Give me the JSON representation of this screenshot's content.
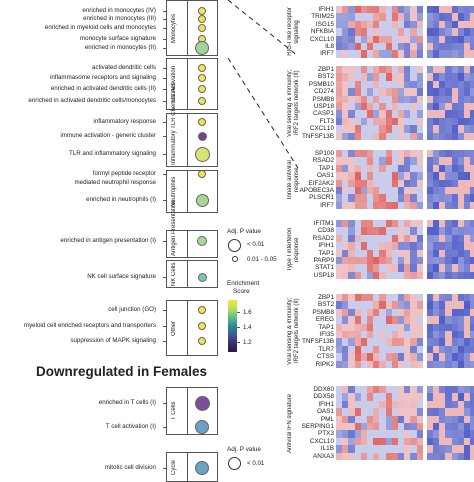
{
  "left_groups": [
    {
      "label": "Monocytes",
      "top": 0,
      "height": 56,
      "terms": [
        {
          "text": "enriched in monocytes (IV)",
          "y": 11,
          "color": "#f5e64a",
          "size": 8
        },
        {
          "text": "enriched in monocytes (III)",
          "y": 19,
          "color": "#f2e24e",
          "size": 8
        },
        {
          "text": "enriched in myeloid cells and monocytes",
          "y": 28,
          "color": "#ede15a",
          "size": 8
        },
        {
          "text": "monocyte surface signature",
          "y": 39,
          "color": "#e8df5d",
          "size": 8
        },
        {
          "text": "enriched in monocytes (II)",
          "y": 48,
          "color": "#9fd59a",
          "size": 14
        }
      ]
    },
    {
      "label": "DC Activation",
      "top": 58,
      "height": 52,
      "terms": [
        {
          "text": "activated dendritic cells",
          "y": 68,
          "color": "#f5e34a",
          "size": 8
        },
        {
          "text": "inflammasome receptors and signaling",
          "y": 78,
          "color": "#f6e64a",
          "size": 8
        },
        {
          "text": "enriched in activated dendritic cells (II)",
          "y": 89,
          "color": "#f3e54c",
          "size": 8
        },
        {
          "text": "enriched in activated dendritic cells/monocytes",
          "y": 101,
          "color": "#f2e44e",
          "size": 8
        }
      ]
    },
    {
      "label": "Inflammatory TLR Chemokines",
      "top": 113,
      "height": 54,
      "terms": [
        {
          "text": "inflammatory response",
          "y": 122,
          "color": "#f2e34c",
          "size": 8
        },
        {
          "text": "immune activation - generic cluster",
          "y": 136,
          "color": "#7a3f8c",
          "size": 9
        },
        {
          "text": "TLR and inflammatory signaling",
          "y": 154,
          "color": "#d9e474",
          "size": 15
        }
      ]
    },
    {
      "label": "Neutrophils",
      "top": 170,
      "height": 43,
      "terms": [
        {
          "text": "formyl peptide receptor",
          "y": 174,
          "color": "#f4e44b",
          "size": 8
        },
        {
          "text": "mediated neutrophil response",
          "y": 183,
          "color": null,
          "size": 0
        },
        {
          "text": "enriched in neutrophils (I)",
          "y": 200,
          "color": "#a8d595",
          "size": 13
        }
      ]
    },
    {
      "label": "Antigen Presentation",
      "top": 230,
      "height": 28,
      "terms": [
        {
          "text": "enriched in antigen presentation (I)",
          "y": 241,
          "color": "#a8d59a",
          "size": 10
        }
      ]
    },
    {
      "label": "NK Cells",
      "top": 260,
      "height": 28,
      "terms": [
        {
          "text": "NK cell surface signature",
          "y": 277,
          "color": "#7fc7a2",
          "size": 9
        }
      ]
    },
    {
      "label": "Other",
      "top": 300,
      "height": 56,
      "terms": [
        {
          "text": "cell junction (GO)",
          "y": 310,
          "color": "#f1e44d",
          "size": 8
        },
        {
          "text": "myeloid cell enriched receptors and transporters",
          "y": 326,
          "color": "#f4e54b",
          "size": 8
        },
        {
          "text": "suppression of MAPK signaling",
          "y": 341,
          "color": "#f2e44d",
          "size": 8
        }
      ]
    },
    {
      "label": "T Cells",
      "top": 387,
      "height": 48,
      "terms": [
        {
          "text": "enriched in T cells (I)",
          "y": 403,
          "color": "#7a4f9c",
          "size": 15
        },
        {
          "text": "T cell activation (I)",
          "y": 427,
          "color": "#6aa0c8",
          "size": 14
        }
      ]
    },
    {
      "label": "Cycle",
      "top": 452,
      "height": 30,
      "terms": [
        {
          "text": "mitotic cell division",
          "y": 468,
          "color": "#6aa3c3",
          "size": 14
        }
      ]
    }
  ],
  "downregulated_title": "Downregulated in Females",
  "legend_pvalue": {
    "title_line1": "Adj. P value",
    "items": [
      "< 0.01",
      "0.01 - 0.05"
    ]
  },
  "legend_pvalue_bottom": {
    "title_line1": "Adj. P value",
    "items": [
      "< 0.01"
    ]
  },
  "legend_score": {
    "title_line1": "Enrichment",
    "title_line2": "Score",
    "ticks": [
      "1.6",
      "1.4",
      "1.2"
    ]
  },
  "heat_groups": [
    {
      "label": "RIG-I like receptor signaling",
      "genes": [
        "IFIH1",
        "TRIM25",
        "ISG15",
        "NFKBIA",
        "CXCL10",
        "IL8",
        "IRF7"
      ],
      "top": 6
    },
    {
      "label": "Viral sensing & immunity; IRF2 targets network (II)",
      "genes": [
        "ZBP1",
        "BST2",
        "PSMB10",
        "CD274",
        "PSMB8",
        "USP18",
        "CASP1",
        "FLT3",
        "CXCL10",
        "TNFSF13B"
      ],
      "top": 66
    },
    {
      "label": "Innate antiviral response",
      "genes": [
        "SP100",
        "RSAD2",
        "TAP1",
        "OAS1",
        "EIF2AK2",
        "APOBEC3A",
        "PLSCR1",
        "IRF7"
      ],
      "top": 150
    },
    {
      "label": "Type I interferon response",
      "genes": [
        "IFITM1",
        "CD38",
        "RSAD2",
        "IFIH1",
        "TAP1",
        "PARP9",
        "STAT1",
        "USP18"
      ],
      "top": 220
    },
    {
      "label": "Viral sensing & immunity; IRF2 targets network (II)",
      "genes": [
        "ZBP1",
        "BST2",
        "PSMB8",
        "EREG",
        "TAP1",
        "IFI35",
        "TNFSF13B",
        "TLR7",
        "CTSS",
        "RIPK2"
      ],
      "top": 294
    },
    {
      "label": "Antiviral IFN signature",
      "genes": [
        "DDX60",
        "DDX58",
        "IFIH1",
        "OAS1",
        "PML",
        "SERPING1",
        "PTX3",
        "CXCL10",
        "IL1B",
        "ANXA3"
      ],
      "top": 386
    }
  ],
  "colors": {
    "red": "#d7312b",
    "blue": "#4756c5",
    "white": "#f6f3f8",
    "panel_border": "#555555"
  }
}
